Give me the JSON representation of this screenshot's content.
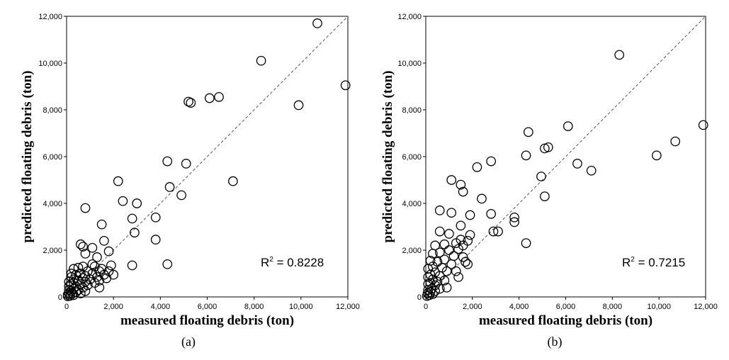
{
  "chart_data": [
    {
      "type": "scatter",
      "panel_label": "(a)",
      "xlabel": "measured floating debris (ton)",
      "ylabel": "predicted floating debris (ton)",
      "xlim": [
        0,
        12000
      ],
      "ylim": [
        0,
        12000
      ],
      "xticks": [
        "0",
        "2,000",
        "4,000",
        "6,000",
        "8,000",
        "10,000",
        "12,000"
      ],
      "yticks": [
        "0",
        "2,000",
        "4,000",
        "6,000",
        "8,000",
        "10,000",
        "12,000"
      ],
      "r2_label": "R",
      "r2_sup": "2",
      "r2_value": " = 0.8228",
      "reference_line": "y = x",
      "points": [
        [
          10700,
          11700
        ],
        [
          8300,
          10100
        ],
        [
          11900,
          9050
        ],
        [
          9900,
          8200
        ],
        [
          5200,
          8350
        ],
        [
          5300,
          8300
        ],
        [
          6100,
          8500
        ],
        [
          6500,
          8550
        ],
        [
          4300,
          5800
        ],
        [
          5100,
          5700
        ],
        [
          7100,
          4950
        ],
        [
          4400,
          4700
        ],
        [
          4900,
          4350
        ],
        [
          2200,
          4950
        ],
        [
          2400,
          4100
        ],
        [
          3000,
          4000
        ],
        [
          800,
          3800
        ],
        [
          2800,
          3350
        ],
        [
          3800,
          3400
        ],
        [
          1500,
          3100
        ],
        [
          2900,
          2750
        ],
        [
          3800,
          2450
        ],
        [
          1600,
          2400
        ],
        [
          600,
          2250
        ],
        [
          700,
          2150
        ],
        [
          1100,
          2100
        ],
        [
          1800,
          1950
        ],
        [
          800,
          1850
        ],
        [
          1300,
          1700
        ],
        [
          1100,
          1400
        ],
        [
          4300,
          1400
        ],
        [
          2800,
          1350
        ],
        [
          1900,
          1350
        ],
        [
          700,
          1300
        ],
        [
          500,
          1250
        ],
        [
          1200,
          1300
        ],
        [
          1500,
          1200
        ],
        [
          300,
          1200
        ],
        [
          900,
          1100
        ],
        [
          1400,
          1100
        ],
        [
          1800,
          1100
        ],
        [
          200,
          1000
        ],
        [
          600,
          1000
        ],
        [
          1100,
          1000
        ],
        [
          1600,
          950
        ],
        [
          2000,
          950
        ],
        [
          400,
          950
        ],
        [
          800,
          900
        ],
        [
          1300,
          850
        ],
        [
          200,
          850
        ],
        [
          1700,
          800
        ],
        [
          700,
          800
        ],
        [
          300,
          750
        ],
        [
          1000,
          750
        ],
        [
          1400,
          700
        ],
        [
          500,
          700
        ],
        [
          100,
          650
        ],
        [
          800,
          650
        ],
        [
          300,
          600
        ],
        [
          1200,
          600
        ],
        [
          600,
          550
        ],
        [
          200,
          550
        ],
        [
          900,
          500
        ],
        [
          400,
          450
        ],
        [
          100,
          450
        ],
        [
          700,
          400
        ],
        [
          1400,
          400
        ],
        [
          300,
          350
        ],
        [
          100,
          300
        ],
        [
          500,
          300
        ],
        [
          200,
          250
        ],
        [
          800,
          250
        ],
        [
          400,
          200
        ],
        [
          100,
          150
        ],
        [
          250,
          150
        ],
        [
          600,
          150
        ],
        [
          50,
          100
        ],
        [
          150,
          50
        ],
        [
          300,
          80
        ],
        [
          50,
          30
        ]
      ]
    },
    {
      "type": "scatter",
      "panel_label": "(b)",
      "xlabel": "measured floating debris (ton)",
      "ylabel": "predicted floating debris (ton)",
      "xlim": [
        0,
        12000
      ],
      "ylim": [
        0,
        12000
      ],
      "xticks": [
        "0",
        "2,000",
        "4,000",
        "6,000",
        "8,000",
        "10,000",
        "12,000"
      ],
      "yticks": [
        "0",
        "2,000",
        "4,000",
        "6,000",
        "8,000",
        "10,000",
        "12,000"
      ],
      "r2_label": "R",
      "r2_sup": "2",
      "r2_value": " = 0.7215",
      "reference_line": "y = x",
      "points": [
        [
          8300,
          10350
        ],
        [
          11900,
          7350
        ],
        [
          6100,
          7300
        ],
        [
          4400,
          7050
        ],
        [
          10700,
          6650
        ],
        [
          5100,
          6350
        ],
        [
          5250,
          6400
        ],
        [
          4300,
          6050
        ],
        [
          9900,
          6050
        ],
        [
          2800,
          5800
        ],
        [
          6500,
          5700
        ],
        [
          2200,
          5550
        ],
        [
          7100,
          5400
        ],
        [
          4950,
          5150
        ],
        [
          1100,
          5000
        ],
        [
          1500,
          4800
        ],
        [
          1600,
          4500
        ],
        [
          5100,
          4300
        ],
        [
          2400,
          4200
        ],
        [
          600,
          3700
        ],
        [
          1100,
          3600
        ],
        [
          2800,
          3550
        ],
        [
          1900,
          3500
        ],
        [
          3800,
          3400
        ],
        [
          3800,
          3200
        ],
        [
          1500,
          3050
        ],
        [
          2900,
          2800
        ],
        [
          3100,
          2800
        ],
        [
          1000,
          2700
        ],
        [
          1900,
          2650
        ],
        [
          600,
          2800
        ],
        [
          1500,
          2450
        ],
        [
          4300,
          2300
        ],
        [
          1300,
          2300
        ],
        [
          1800,
          2400
        ],
        [
          800,
          2250
        ],
        [
          1600,
          2200
        ],
        [
          400,
          2200
        ],
        [
          1400,
          2050
        ],
        [
          1000,
          2000
        ],
        [
          600,
          1900
        ],
        [
          300,
          1850
        ],
        [
          1200,
          1750
        ],
        [
          1600,
          1700
        ],
        [
          800,
          1600
        ],
        [
          200,
          1550
        ],
        [
          1700,
          1500
        ],
        [
          500,
          1500
        ],
        [
          1100,
          1400
        ],
        [
          1800,
          1400
        ],
        [
          300,
          1300
        ],
        [
          700,
          1250
        ],
        [
          100,
          1200
        ],
        [
          1300,
          1100
        ],
        [
          900,
          1100
        ],
        [
          400,
          1050
        ],
        [
          200,
          950
        ],
        [
          600,
          900
        ],
        [
          1400,
          850
        ],
        [
          100,
          850
        ],
        [
          300,
          750
        ],
        [
          800,
          700
        ],
        [
          500,
          650
        ],
        [
          200,
          600
        ],
        [
          100,
          550
        ],
        [
          400,
          500
        ],
        [
          900,
          400
        ],
        [
          600,
          350
        ],
        [
          250,
          350
        ],
        [
          100,
          300
        ],
        [
          400,
          250
        ],
        [
          200,
          200
        ],
        [
          80,
          150
        ],
        [
          300,
          120
        ],
        [
          150,
          80
        ],
        [
          50,
          40
        ]
      ]
    }
  ]
}
